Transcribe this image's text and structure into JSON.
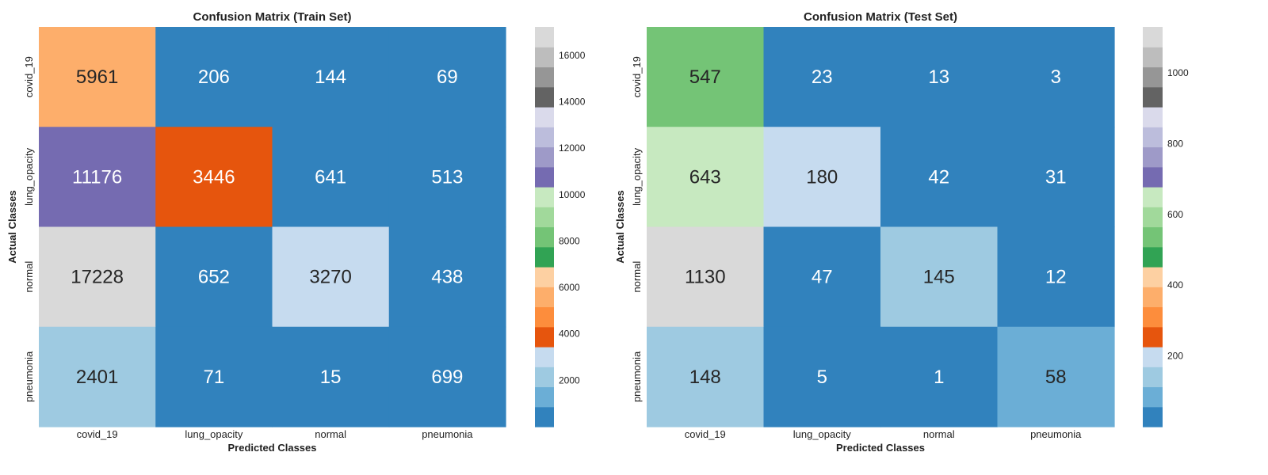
{
  "chart_data": [
    {
      "type": "heatmap",
      "title": "Confusion Matrix (Train Set)",
      "xlabel": "Predicted Classes",
      "ylabel": "Actual Classes",
      "x_categories": [
        "covid_19",
        "lung_opacity",
        "normal",
        "pneumonia"
      ],
      "y_categories": [
        "covid_19",
        "lung_opacity",
        "normal",
        "pneumonia"
      ],
      "values": [
        [
          5961,
          206,
          144,
          69
        ],
        [
          11176,
          3446,
          641,
          513
        ],
        [
          17228,
          652,
          3270,
          438
        ],
        [
          2401,
          71,
          15,
          699
        ]
      ],
      "colorbar": {
        "min": 0,
        "max": 17228,
        "ticks": [
          2000,
          4000,
          6000,
          8000,
          10000,
          12000,
          14000,
          16000
        ]
      },
      "colormap": "tab20c"
    },
    {
      "type": "heatmap",
      "title": "Confusion Matrix (Test Set)",
      "xlabel": "Predicted Classes",
      "ylabel": "Actual Classes",
      "x_categories": [
        "covid_19",
        "lung_opacity",
        "normal",
        "pneumonia"
      ],
      "y_categories": [
        "covid_19",
        "lung_opacity",
        "normal",
        "pneumonia"
      ],
      "values": [
        [
          547,
          23,
          13,
          3
        ],
        [
          643,
          180,
          42,
          31
        ],
        [
          1130,
          47,
          145,
          12
        ],
        [
          148,
          5,
          1,
          58
        ]
      ],
      "colorbar": {
        "min": 0,
        "max": 1130,
        "ticks": [
          200,
          400,
          600,
          800,
          1000
        ]
      },
      "colormap": "tab20c"
    }
  ],
  "colormap_colors": [
    "#3182bd",
    "#6baed6",
    "#9ecae1",
    "#c6dbef",
    "#e6550d",
    "#fd8d3c",
    "#fdae6b",
    "#fdd0a2",
    "#31a354",
    "#74c476",
    "#a1d99b",
    "#c7e9c0",
    "#756bb1",
    "#9e9ac8",
    "#bcbddc",
    "#dadaeb",
    "#636363",
    "#969696",
    "#bdbdbd",
    "#d9d9d9"
  ]
}
